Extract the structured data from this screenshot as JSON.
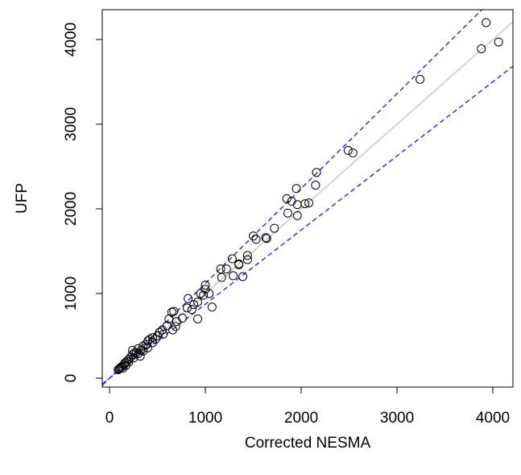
{
  "chart_data": {
    "type": "scatter",
    "x_label": "Corrected NESMA",
    "y_label": "UFP",
    "xlim": [
      -76,
      4210
    ],
    "ylim": [
      -105,
      4352
    ],
    "xticks": [
      0,
      1000,
      2000,
      3000,
      4000
    ],
    "yticks": [
      0,
      1000,
      2000,
      3000,
      4000
    ],
    "point_color": "#000000",
    "reference_lines": [
      {
        "slope": 1.0,
        "color": "#c8c8c8",
        "dashed": false
      },
      {
        "slope": 1.12,
        "color": "#3333ee",
        "dashed": true
      },
      {
        "slope": 0.875,
        "color": "#3333ee",
        "dashed": true
      }
    ],
    "x": [
      3930,
      4060,
      3880,
      3240,
      2490,
      2540,
      2160,
      2150,
      1950,
      1850,
      1900,
      1960,
      2040,
      2080,
      1860,
      1960,
      1720,
      1500,
      1530,
      1630,
      1640,
      1440,
      1440,
      1390,
      1350,
      1280,
      1160,
      1170,
      1220,
      1290,
      1350,
      1000,
      1000,
      1040,
      980,
      1070,
      920,
      920,
      880,
      820,
      810,
      760,
      670,
      650,
      620,
      660,
      690,
      550,
      520,
      560,
      500,
      480,
      450,
      420,
      400,
      380,
      350,
      330,
      300,
      280,
      260,
      240,
      220,
      200,
      180,
      160,
      150,
      130,
      120,
      110,
      100,
      90,
      140,
      170,
      200,
      250,
      300,
      350,
      400,
      450,
      600,
      700,
      860,
      950,
      240,
      320
    ],
    "y": [
      4200,
      3970,
      3890,
      3530,
      2690,
      2660,
      2430,
      2280,
      2240,
      2120,
      2090,
      2050,
      2060,
      2070,
      1950,
      1920,
      1770,
      1680,
      1640,
      1660,
      1650,
      1450,
      1400,
      1200,
      1340,
      1410,
      1290,
      1190,
      1290,
      1210,
      1350,
      1100,
      1050,
      1000,
      980,
      840,
      700,
      900,
      870,
      940,
      830,
      710,
      790,
      780,
      700,
      570,
      610,
      570,
      540,
      520,
      500,
      460,
      480,
      460,
      440,
      400,
      380,
      330,
      350,
      300,
      300,
      280,
      250,
      220,
      200,
      180,
      160,
      140,
      130,
      120,
      110,
      100,
      120,
      150,
      190,
      240,
      290,
      320,
      360,
      420,
      620,
      670,
      810,
      1000,
      330,
      260
    ]
  }
}
